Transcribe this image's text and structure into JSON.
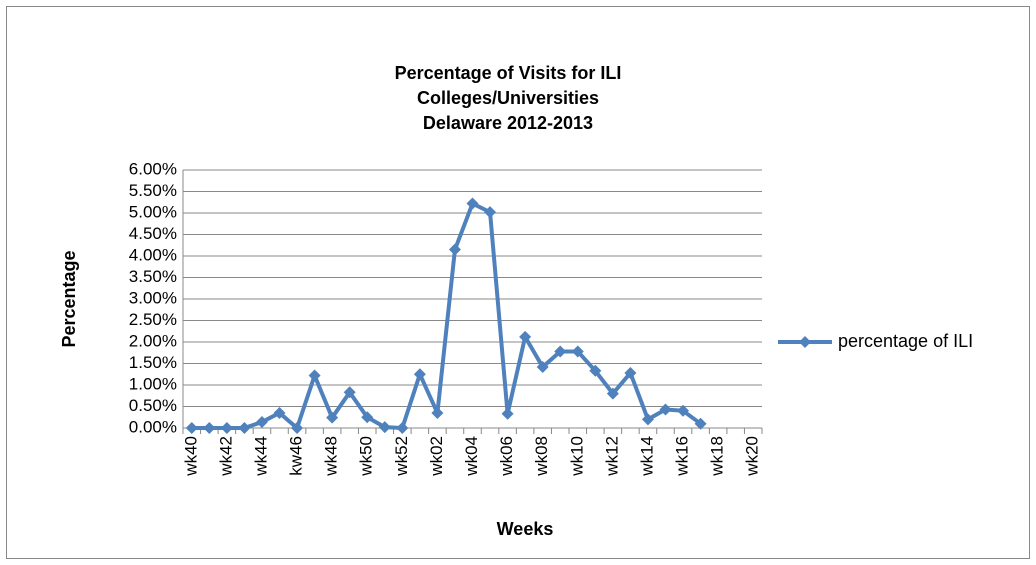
{
  "chart_data": {
    "type": "line",
    "title": [
      "Percentage of Visits for ILI",
      "Colleges/Universities",
      "Delaware 2012-2013"
    ],
    "x_label": "Weeks",
    "y_label": "Percentage",
    "categories": [
      "wk40",
      null,
      "wk42",
      null,
      "wk44",
      null,
      "kw46",
      null,
      "wk48",
      null,
      "wk50",
      null,
      "wk52",
      null,
      "wk02",
      null,
      "wk04",
      null,
      "wk06",
      null,
      "wk08",
      null,
      "wk10",
      null,
      "wk12",
      null,
      "wk14",
      null,
      "wk16",
      null,
      "wk18",
      null,
      "wk20"
    ],
    "series": [
      {
        "name": "percentage of ILI",
        "color": "#4f81bd",
        "values": [
          0,
          0,
          0,
          0,
          0.14,
          0.35,
          0,
          1.22,
          0.24,
          0.83,
          0.25,
          0.02,
          0,
          1.25,
          0.35,
          4.15,
          5.22,
          5.02,
          0.33,
          2.12,
          1.42,
          1.78,
          1.78,
          1.33,
          0.8,
          1.28,
          0.2,
          0.43,
          0.4,
          0.1,
          null,
          null,
          null
        ]
      }
    ],
    "ylim": [
      0,
      6
    ],
    "yticks": [
      {
        "value": 0,
        "label": "0.00%"
      },
      {
        "value": 0.5,
        "label": "0.50%"
      },
      {
        "value": 1,
        "label": "1.00%"
      },
      {
        "value": 1.5,
        "label": "1.50%"
      },
      {
        "value": 2,
        "label": "2.00%"
      },
      {
        "value": 2.5,
        "label": "2.50%"
      },
      {
        "value": 3,
        "label": "3.00%"
      },
      {
        "value": 3.5,
        "label": "3.50%"
      },
      {
        "value": 4,
        "label": "4.00%"
      },
      {
        "value": 4.5,
        "label": "4.50%"
      },
      {
        "value": 5,
        "label": "5.00%"
      },
      {
        "value": 5.5,
        "label": "5.50%"
      },
      {
        "value": 6,
        "label": "6.00%"
      }
    ],
    "grid": true,
    "legend": "right"
  }
}
